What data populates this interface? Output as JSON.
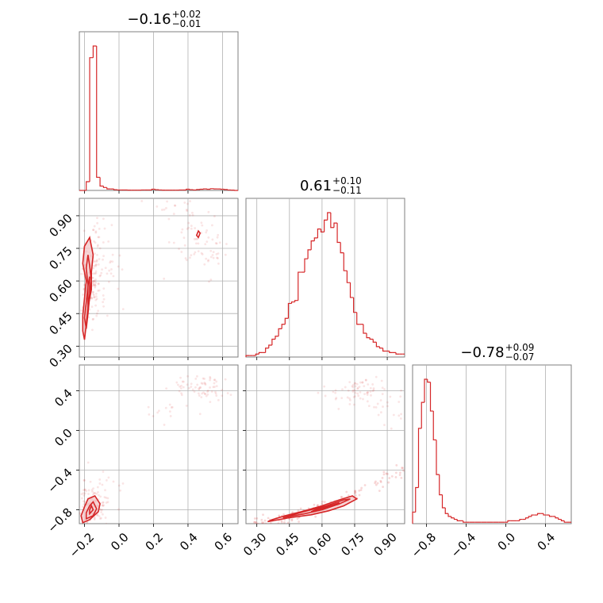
{
  "figure": {
    "accent_color": "#d62728",
    "fill_color": "#f4c7c8"
  },
  "chart_data": [
    {
      "type": "histogram",
      "panel": "param1-marginal",
      "title": {
        "value": "−0.16",
        "plus": "+0.02",
        "minus": "−0.01"
      },
      "xlim": [
        -0.23,
        0.69
      ],
      "x_ticks": [
        -0.2,
        0.0,
        0.2,
        0.4,
        0.6
      ],
      "x_tick_labels": [
        "−0.2",
        "0.0",
        "0.2",
        "0.4",
        "0.6"
      ],
      "bin_edges": [
        -0.23,
        -0.21,
        -0.19,
        -0.17,
        -0.15,
        -0.13,
        -0.11,
        -0.09,
        -0.07,
        -0.05,
        -0.03,
        -0.01,
        0.01,
        0.03,
        0.05,
        0.07,
        0.09,
        0.11,
        0.13,
        0.15,
        0.17,
        0.19,
        0.21,
        0.23,
        0.25,
        0.27,
        0.29,
        0.31,
        0.33,
        0.35,
        0.37,
        0.39,
        0.41,
        0.43,
        0.45,
        0.47,
        0.49,
        0.51,
        0.53,
        0.55,
        0.57,
        0.59,
        0.61,
        0.63,
        0.65,
        0.67,
        0.69
      ],
      "counts": [
        0,
        0,
        6,
        91,
        99,
        9,
        3,
        2,
        1,
        1,
        0.5,
        0.3,
        0.3,
        0.3,
        0.2,
        0.2,
        0.2,
        0.2,
        0.3,
        0.3,
        0.3,
        0.8,
        0.5,
        0.3,
        0.2,
        0.2,
        0.2,
        0.2,
        0.2,
        0.3,
        0.3,
        0.8,
        0.5,
        0.3,
        0.6,
        0.8,
        1,
        0.8,
        1.2,
        1,
        1,
        0.8,
        0.6,
        0.3,
        0.2,
        0
      ]
    },
    {
      "type": "histogram",
      "panel": "param2-marginal",
      "title": {
        "value": "0.61",
        "plus": "+0.10",
        "minus": "−0.11"
      },
      "xlim": [
        0.25,
        0.98
      ],
      "x_ticks": [
        0.3,
        0.45,
        0.6,
        0.75,
        0.9
      ],
      "x_tick_labels": [
        "0.30",
        "0.45",
        "0.60",
        "0.75",
        "0.90"
      ],
      "bin_edges": [
        0.25,
        0.265,
        0.28,
        0.295,
        0.31,
        0.325,
        0.34,
        0.355,
        0.37,
        0.385,
        0.4,
        0.415,
        0.43,
        0.445,
        0.46,
        0.475,
        0.49,
        0.505,
        0.52,
        0.535,
        0.55,
        0.565,
        0.58,
        0.595,
        0.61,
        0.625,
        0.64,
        0.655,
        0.67,
        0.685,
        0.7,
        0.715,
        0.73,
        0.745,
        0.76,
        0.775,
        0.79,
        0.805,
        0.82,
        0.835,
        0.85,
        0.865,
        0.88,
        0.895,
        0.91,
        0.925,
        0.94,
        0.955,
        0.97,
        0.98
      ],
      "counts": [
        1,
        1,
        1,
        2,
        3,
        3,
        6,
        8,
        12,
        14,
        19,
        22,
        26,
        36,
        37,
        38,
        57,
        57,
        66,
        72,
        78,
        80,
        86,
        84,
        92,
        97,
        87,
        90,
        77,
        70,
        58,
        50,
        40,
        30,
        22,
        22,
        16,
        13,
        12,
        10,
        7,
        6,
        4,
        4,
        3,
        3,
        2,
        2,
        2
      ]
    },
    {
      "type": "histogram",
      "panel": "param3-marginal",
      "title": {
        "value": "−0.78",
        "plus": "+0.09",
        "minus": "−0.07"
      },
      "xlim": [
        -0.94,
        0.66
      ],
      "x_ticks": [
        -0.8,
        -0.4,
        0.0,
        0.4
      ],
      "x_tick_labels": [
        "−0.8",
        "−0.4",
        "0.0",
        "0.4"
      ],
      "bin_edges": [
        -0.94,
        -0.91,
        -0.88,
        -0.85,
        -0.82,
        -0.79,
        -0.76,
        -0.73,
        -0.7,
        -0.67,
        -0.64,
        -0.61,
        -0.58,
        -0.55,
        -0.52,
        -0.49,
        -0.46,
        -0.43,
        -0.4,
        -0.37,
        -0.34,
        -0.31,
        -0.28,
        -0.25,
        -0.22,
        -0.19,
        -0.16,
        -0.13,
        -0.1,
        -0.07,
        -0.04,
        -0.01,
        0.02,
        0.05,
        0.08,
        0.11,
        0.14,
        0.17,
        0.2,
        0.23,
        0.26,
        0.29,
        0.32,
        0.35,
        0.38,
        0.41,
        0.44,
        0.47,
        0.5,
        0.53,
        0.56,
        0.59,
        0.62,
        0.66
      ],
      "counts": [
        8,
        25,
        66,
        84,
        100,
        98,
        78,
        58,
        34,
        20,
        11,
        7,
        5,
        4,
        3,
        2,
        2,
        1,
        1,
        1,
        1,
        1,
        1,
        1,
        1,
        1,
        1,
        1,
        1,
        1,
        1,
        1,
        2,
        2,
        2,
        2,
        3,
        3,
        4,
        5,
        6,
        6,
        7,
        7,
        6,
        6,
        5,
        5,
        4,
        3,
        2,
        1,
        1
      ]
    },
    {
      "type": "scatter-contour",
      "panel": "param1-vs-param2",
      "xlim": [
        -0.23,
        0.69
      ],
      "ylim": [
        0.25,
        0.98
      ],
      "x_ticks": [
        -0.2,
        0.0,
        0.2,
        0.4,
        0.6
      ],
      "y_ticks": [
        0.3,
        0.45,
        0.6,
        0.75,
        0.9
      ],
      "y_tick_labels": [
        "0.30",
        "0.45",
        "0.60",
        "0.75",
        "0.90"
      ],
      "contours": [
        [
          [
            -0.2,
            0.33
          ],
          [
            -0.19,
            0.4
          ],
          [
            -0.18,
            0.48
          ],
          [
            -0.16,
            0.56
          ],
          [
            -0.16,
            0.64
          ],
          [
            -0.15,
            0.72
          ],
          [
            -0.17,
            0.8
          ],
          [
            -0.2,
            0.76
          ],
          [
            -0.21,
            0.68
          ],
          [
            -0.19,
            0.6
          ],
          [
            -0.2,
            0.52
          ],
          [
            -0.21,
            0.44
          ],
          [
            -0.21,
            0.37
          ]
        ],
        [
          [
            -0.19,
            0.38
          ],
          [
            -0.18,
            0.45
          ],
          [
            -0.17,
            0.53
          ],
          [
            -0.16,
            0.6
          ],
          [
            -0.17,
            0.67
          ],
          [
            -0.18,
            0.72
          ],
          [
            -0.19,
            0.66
          ],
          [
            -0.18,
            0.58
          ],
          [
            -0.19,
            0.5
          ],
          [
            -0.2,
            0.43
          ]
        ],
        [
          [
            -0.18,
            0.46
          ],
          [
            -0.17,
            0.54
          ],
          [
            -0.17,
            0.62
          ],
          [
            -0.18,
            0.58
          ],
          [
            -0.18,
            0.5
          ]
        ],
        [
          [
            0.45,
            0.81
          ],
          [
            0.46,
            0.83
          ],
          [
            0.47,
            0.82
          ],
          [
            0.46,
            0.8
          ]
        ]
      ],
      "scatter_clusters": [
        {
          "cx": -0.16,
          "cy": 0.62,
          "sx": 0.04,
          "sy": 0.12,
          "n": 160
        },
        {
          "cx": -0.08,
          "cy": 0.66,
          "sx": 0.06,
          "sy": 0.08,
          "n": 30
        },
        {
          "cx": 0.45,
          "cy": 0.82,
          "sx": 0.07,
          "sy": 0.06,
          "n": 50
        },
        {
          "cx": 0.55,
          "cy": 0.71,
          "sx": 0.04,
          "sy": 0.05,
          "n": 20
        },
        {
          "cx": 0.3,
          "cy": 0.93,
          "sx": 0.08,
          "sy": 0.03,
          "n": 14
        }
      ]
    },
    {
      "type": "scatter-contour",
      "panel": "param1-vs-param3",
      "xlim": [
        -0.23,
        0.69
      ],
      "ylim": [
        -0.94,
        0.66
      ],
      "x_ticks": [
        -0.2,
        0.0,
        0.2,
        0.4,
        0.6
      ],
      "x_tick_labels": [
        "−0.2",
        "0.0",
        "0.2",
        "0.4",
        "0.6"
      ],
      "y_ticks": [
        -0.8,
        -0.4,
        0.0,
        0.4
      ],
      "y_tick_labels": [
        "−0.8",
        "−0.4",
        "0.0",
        "0.4"
      ],
      "contours": [
        [
          [
            -0.21,
            -0.93
          ],
          [
            -0.17,
            -0.9
          ],
          [
            -0.12,
            -0.82
          ],
          [
            -0.11,
            -0.74
          ],
          [
            -0.14,
            -0.66
          ],
          [
            -0.18,
            -0.69
          ],
          [
            -0.2,
            -0.77
          ],
          [
            -0.22,
            -0.86
          ]
        ],
        [
          [
            -0.19,
            -0.89
          ],
          [
            -0.15,
            -0.86
          ],
          [
            -0.13,
            -0.79
          ],
          [
            -0.15,
            -0.72
          ],
          [
            -0.17,
            -0.76
          ],
          [
            -0.19,
            -0.83
          ]
        ],
        [
          [
            -0.17,
            -0.84
          ],
          [
            -0.15,
            -0.8
          ],
          [
            -0.16,
            -0.76
          ],
          [
            -0.17,
            -0.8
          ]
        ]
      ],
      "scatter_clusters": [
        {
          "cx": -0.16,
          "cy": -0.78,
          "sx": 0.05,
          "sy": 0.09,
          "n": 140
        },
        {
          "cx": -0.1,
          "cy": -0.6,
          "sx": 0.06,
          "sy": 0.12,
          "n": 30
        },
        {
          "cx": 0.47,
          "cy": 0.42,
          "sx": 0.08,
          "sy": 0.08,
          "n": 70
        },
        {
          "cx": 0.25,
          "cy": 0.2,
          "sx": 0.06,
          "sy": 0.06,
          "n": 12
        }
      ]
    },
    {
      "type": "scatter-contour",
      "panel": "param2-vs-param3",
      "xlim": [
        0.25,
        0.98
      ],
      "ylim": [
        -0.94,
        0.66
      ],
      "x_ticks": [
        0.3,
        0.45,
        0.6,
        0.75,
        0.9
      ],
      "x_tick_labels": [
        "0.30",
        "0.45",
        "0.60",
        "0.75",
        "0.90"
      ],
      "y_ticks": [
        -0.8,
        -0.4,
        0.0,
        0.4
      ],
      "contours": [
        [
          [
            0.35,
            -0.92
          ],
          [
            0.45,
            -0.88
          ],
          [
            0.55,
            -0.85
          ],
          [
            0.63,
            -0.81
          ],
          [
            0.7,
            -0.76
          ],
          [
            0.76,
            -0.69
          ],
          [
            0.74,
            -0.66
          ],
          [
            0.68,
            -0.7
          ],
          [
            0.6,
            -0.76
          ],
          [
            0.52,
            -0.81
          ],
          [
            0.43,
            -0.86
          ],
          [
            0.37,
            -0.9
          ]
        ],
        [
          [
            0.42,
            -0.88
          ],
          [
            0.52,
            -0.84
          ],
          [
            0.6,
            -0.8
          ],
          [
            0.68,
            -0.74
          ],
          [
            0.73,
            -0.69
          ],
          [
            0.7,
            -0.7
          ],
          [
            0.62,
            -0.76
          ],
          [
            0.53,
            -0.81
          ],
          [
            0.45,
            -0.86
          ]
        ],
        [
          [
            0.55,
            -0.82
          ],
          [
            0.62,
            -0.78
          ],
          [
            0.68,
            -0.73
          ],
          [
            0.65,
            -0.75
          ],
          [
            0.58,
            -0.79
          ]
        ]
      ],
      "scatter_band": {
        "x0": 0.3,
        "y0": -0.93,
        "x1": 0.97,
        "y1": -0.38,
        "n": 140,
        "spread": 0.025
      },
      "scatter_clusters": [
        {
          "cx": 0.78,
          "cy": 0.4,
          "sx": 0.08,
          "sy": 0.07,
          "n": 70
        },
        {
          "cx": 0.9,
          "cy": 0.2,
          "sx": 0.05,
          "sy": 0.08,
          "n": 16
        }
      ]
    }
  ]
}
